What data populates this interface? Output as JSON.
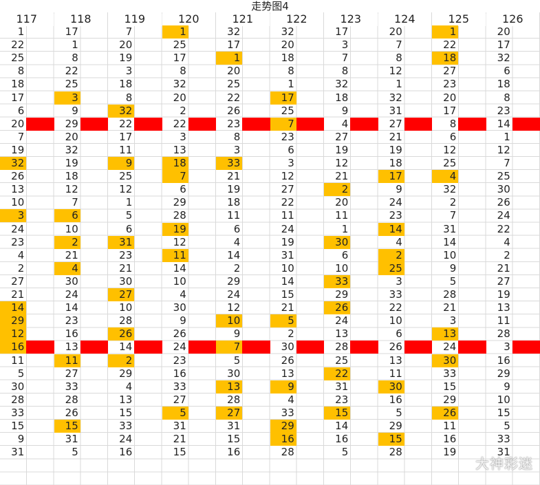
{
  "title": "走势图4",
  "watermark": "大神彩迷",
  "marker_rows": [
    7,
    24
  ],
  "columns": [
    {
      "header": "117",
      "values": [
        1,
        22,
        25,
        8,
        18,
        17,
        6,
        20,
        7,
        19,
        32,
        26,
        13,
        10,
        3,
        24,
        23,
        4,
        2,
        27,
        21,
        14,
        29,
        12,
        16,
        11,
        5,
        30,
        28,
        33,
        15,
        9,
        31
      ],
      "highlighted": [
        10,
        14,
        21,
        22,
        23,
        24
      ]
    },
    {
      "header": "118",
      "values": [
        17,
        1,
        8,
        22,
        25,
        3,
        9,
        29,
        20,
        32,
        19,
        18,
        12,
        7,
        6,
        10,
        2,
        21,
        4,
        30,
        24,
        14,
        23,
        16,
        13,
        11,
        27,
        33,
        28,
        26,
        15,
        31,
        5
      ],
      "highlighted": [
        5,
        14,
        16,
        18,
        25,
        30
      ]
    },
    {
      "header": "119",
      "values": [
        7,
        20,
        19,
        3,
        18,
        8,
        32,
        22,
        17,
        11,
        9,
        25,
        12,
        1,
        5,
        6,
        31,
        23,
        21,
        30,
        27,
        10,
        28,
        26,
        14,
        2,
        29,
        4,
        13,
        15,
        33,
        24,
        16
      ],
      "highlighted": [
        6,
        10,
        16,
        20,
        23,
        25
      ]
    },
    {
      "header": "120",
      "values": [
        1,
        25,
        17,
        8,
        32,
        20,
        2,
        22,
        3,
        13,
        18,
        7,
        6,
        29,
        28,
        19,
        12,
        11,
        14,
        10,
        4,
        30,
        9,
        26,
        24,
        23,
        16,
        33,
        27,
        5,
        31,
        21,
        15
      ],
      "highlighted": [
        0,
        10,
        11,
        15,
        17,
        29
      ]
    },
    {
      "header": "121",
      "values": [
        32,
        17,
        1,
        20,
        25,
        22,
        26,
        23,
        8,
        3,
        33,
        21,
        19,
        18,
        11,
        6,
        4,
        14,
        2,
        29,
        24,
        12,
        10,
        9,
        7,
        5,
        30,
        13,
        28,
        27,
        31,
        15,
        16
      ],
      "highlighted": [
        2,
        10,
        22,
        24,
        27,
        29
      ]
    },
    {
      "header": "122",
      "values": [
        32,
        20,
        18,
        8,
        1,
        17,
        25,
        7,
        23,
        6,
        3,
        12,
        27,
        22,
        11,
        24,
        19,
        31,
        10,
        14,
        15,
        21,
        5,
        2,
        30,
        26,
        13,
        9,
        4,
        33,
        29,
        16,
        28
      ],
      "highlighted": [
        5,
        7,
        22,
        27,
        30,
        31
      ]
    },
    {
      "header": "123",
      "values": [
        17,
        3,
        7,
        8,
        32,
        18,
        9,
        4,
        27,
        19,
        12,
        21,
        2,
        20,
        11,
        1,
        30,
        6,
        10,
        33,
        29,
        26,
        24,
        13,
        28,
        25,
        22,
        31,
        23,
        15,
        14,
        16,
        5
      ],
      "highlighted": [
        12,
        16,
        19,
        21,
        26,
        29
      ]
    },
    {
      "header": "124",
      "values": [
        20,
        7,
        8,
        12,
        1,
        32,
        31,
        27,
        21,
        19,
        18,
        17,
        9,
        24,
        23,
        14,
        4,
        2,
        25,
        3,
        33,
        22,
        10,
        6,
        26,
        13,
        11,
        30,
        16,
        5,
        29,
        15,
        28
      ],
      "highlighted": [
        11,
        15,
        17,
        18,
        27,
        31
      ]
    },
    {
      "header": "125",
      "values": [
        1,
        22,
        18,
        27,
        23,
        20,
        17,
        8,
        6,
        12,
        25,
        4,
        32,
        2,
        7,
        31,
        14,
        10,
        9,
        5,
        28,
        21,
        3,
        13,
        24,
        30,
        33,
        15,
        29,
        26,
        11,
        16,
        19
      ],
      "highlighted": [
        0,
        2,
        11,
        23,
        25,
        29
      ]
    },
    {
      "header": "126",
      "values": [
        20,
        17,
        32,
        6,
        18,
        8,
        23,
        14,
        1,
        12,
        7,
        25,
        30,
        26,
        24,
        22,
        4,
        2,
        21,
        27,
        19,
        13,
        11,
        28,
        3,
        16,
        29,
        9,
        10,
        15,
        5,
        33,
        31
      ],
      "highlighted": []
    }
  ]
}
